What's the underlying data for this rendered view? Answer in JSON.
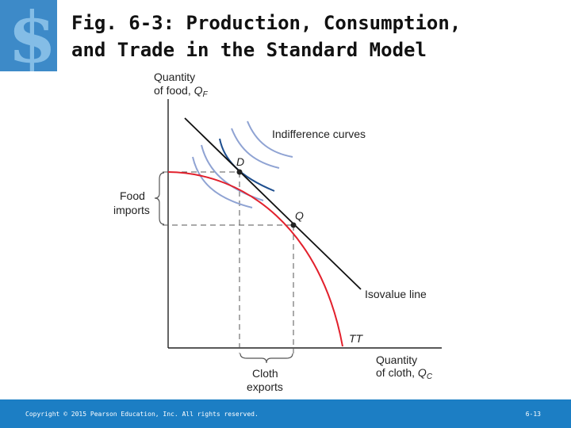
{
  "title": {
    "line1": "Fig. 6-3: Production, Consumption,",
    "line2": "and Trade in the Standard Model"
  },
  "logo_icon": "dollar-sign-logo",
  "diagram": {
    "y_axis": {
      "line1": "Quantity",
      "line2": "of food, ",
      "symbol": "Q",
      "subscript": "F"
    },
    "x_axis": {
      "line1": "Quantity",
      "line2": "of cloth, ",
      "symbol": "Q",
      "subscript": "C"
    },
    "indifference_label": "Indifference curves",
    "isovalue_label": "Isovalue line",
    "tt_label": "TT",
    "point_d": "D",
    "point_q": "Q",
    "food_imports": {
      "line1": "Food",
      "line2": "imports"
    },
    "cloth_exports": {
      "line1": "Cloth",
      "line2": "exports"
    },
    "colors": {
      "tt_curve": "#e2202c",
      "indifference": "#8fa3d3",
      "tangent_curve": "#1f4f8f",
      "isovalue": "#111111"
    }
  },
  "footer": {
    "copyright": "Copyright © 2015 Pearson Education, Inc. All rights reserved.",
    "page": "6-13",
    "color": "#1c7ec4"
  }
}
